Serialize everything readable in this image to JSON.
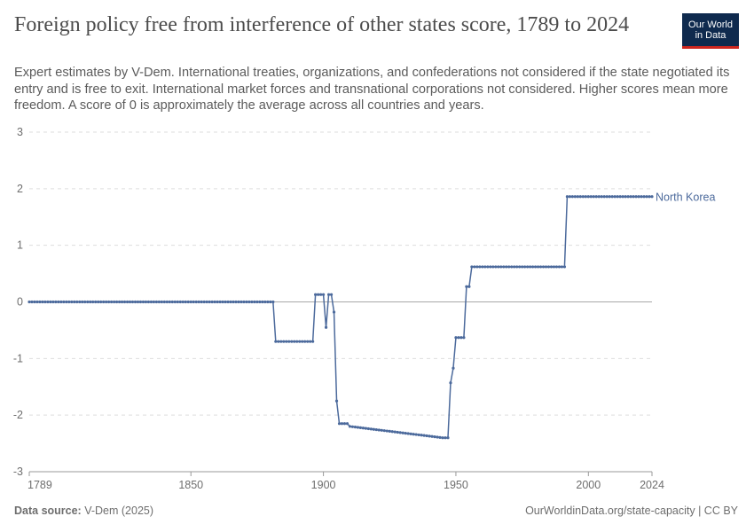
{
  "header": {
    "title": "Foreign policy free from interference of other states score, 1789 to 2024",
    "subtitle": "Expert estimates by V-Dem. International treaties, organizations, and confederations not considered if the state negotiated its entry and is free to exit. International market forces and transnational corporations not considered. Higher scores mean more freedom. A score of 0 is approximately the average across all countries and years."
  },
  "logo": {
    "line1": "Our World",
    "line2": "in Data"
  },
  "footer": {
    "source_label": "Data source:",
    "source_value": "V-Dem (2025)",
    "license": "OurWorldinData.org/state-capacity | CC BY"
  },
  "colors": {
    "series": "#4c6a9c",
    "grid": "#dddddd",
    "zero_line": "#a8a8a8",
    "logo_bg": "#0f2a4e",
    "logo_accent": "#ce261e"
  },
  "chart_data": {
    "type": "line",
    "title": "Foreign policy free from interference of other states score, 1789 to 2024",
    "xlabel": "",
    "ylabel": "",
    "xlim": [
      1789,
      2024
    ],
    "ylim": [
      -3,
      3
    ],
    "x_ticks": [
      1789,
      1850,
      1900,
      1950,
      2000,
      2024
    ],
    "y_ticks": [
      -3,
      -2,
      -1,
      0,
      1,
      2,
      3
    ],
    "grid": "horizontal dashed",
    "legend": "label at end of line",
    "series": [
      {
        "name": "North Korea",
        "points": [
          [
            1789,
            0
          ],
          [
            1881,
            0
          ],
          [
            1882,
            -0.7
          ],
          [
            1896,
            -0.7
          ],
          [
            1897,
            0.13
          ],
          [
            1900,
            0.13
          ],
          [
            1901,
            -0.45
          ],
          [
            1902,
            0.13
          ],
          [
            1903,
            0.13
          ],
          [
            1904,
            -0.18
          ],
          [
            1905,
            -1.75
          ],
          [
            1906,
            -2.15
          ],
          [
            1909,
            -2.15
          ],
          [
            1910,
            -2.2
          ],
          [
            1945,
            -2.4
          ],
          [
            1947,
            -2.4
          ],
          [
            1948,
            -1.43
          ],
          [
            1949,
            -1.17
          ],
          [
            1950,
            -0.63
          ],
          [
            1953,
            -0.63
          ],
          [
            1954,
            0.27
          ],
          [
            1955,
            0.27
          ],
          [
            1956,
            0.62
          ],
          [
            1991,
            0.62
          ],
          [
            1992,
            1.86
          ],
          [
            2024,
            1.86
          ]
        ]
      }
    ]
  }
}
